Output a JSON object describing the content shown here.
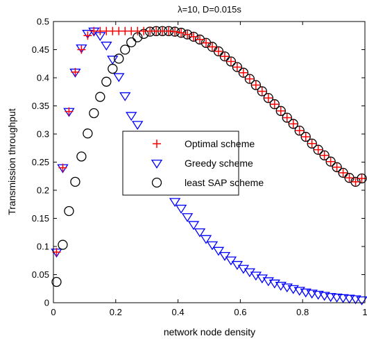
{
  "chart_data": {
    "type": "scatter",
    "title": "λ=10, D=0.015s",
    "xlabel": "network node density",
    "ylabel": "Transmission throughput",
    "xlim": [
      0,
      1
    ],
    "ylim": [
      0,
      0.5
    ],
    "x_ticks": [
      0,
      0.2,
      0.4,
      0.6,
      0.8,
      1
    ],
    "x_tick_labels": [
      "0",
      "0.2",
      "0.4",
      "0.6",
      "0.8",
      "1"
    ],
    "y_ticks": [
      0,
      0.05,
      0.1,
      0.15,
      0.2,
      0.25,
      0.3,
      0.35,
      0.4,
      0.45,
      0.5
    ],
    "y_tick_labels": [
      "0",
      "0.05",
      "0.1",
      "0.15",
      "0.2",
      "0.25",
      "0.3",
      "0.35",
      "0.4",
      "0.45",
      "0.5"
    ],
    "grid": false,
    "legend_position": "center",
    "series": [
      {
        "name": "Optimal scheme",
        "marker": "plus",
        "color": "#ff0000",
        "x": [
          0.01,
          0.03,
          0.05,
          0.07,
          0.09,
          0.11,
          0.13,
          0.15,
          0.17,
          0.19,
          0.21,
          0.23,
          0.25,
          0.27,
          0.29,
          0.31,
          0.33,
          0.35,
          0.37,
          0.39,
          0.41,
          0.43,
          0.45,
          0.47,
          0.49,
          0.51,
          0.53,
          0.55,
          0.57,
          0.59,
          0.61,
          0.63,
          0.65,
          0.67,
          0.69,
          0.71,
          0.73,
          0.75,
          0.77,
          0.79,
          0.81,
          0.83,
          0.85,
          0.87,
          0.89,
          0.91,
          0.93,
          0.95,
          0.97,
          0.99
        ],
        "y": [
          0.09,
          0.24,
          0.34,
          0.41,
          0.45,
          0.475,
          0.483,
          0.483,
          0.483,
          0.483,
          0.483,
          0.483,
          0.483,
          0.483,
          0.483,
          0.483,
          0.483,
          0.483,
          0.483,
          0.482,
          0.48,
          0.477,
          0.473,
          0.468,
          0.462,
          0.455,
          0.447,
          0.438,
          0.429,
          0.419,
          0.409,
          0.398,
          0.387,
          0.376,
          0.364,
          0.353,
          0.341,
          0.329,
          0.318,
          0.306,
          0.295,
          0.283,
          0.272,
          0.262,
          0.251,
          0.241,
          0.231,
          0.222,
          0.215,
          0.221
        ]
      },
      {
        "name": "Greedy scheme",
        "marker": "triangle-down",
        "color": "#0000ff",
        "x": [
          0.01,
          0.03,
          0.05,
          0.07,
          0.09,
          0.11,
          0.13,
          0.15,
          0.17,
          0.19,
          0.21,
          0.23,
          0.25,
          0.27,
          0.29,
          0.31,
          0.33,
          0.35,
          0.37,
          0.39,
          0.41,
          0.43,
          0.45,
          0.47,
          0.49,
          0.51,
          0.53,
          0.55,
          0.57,
          0.59,
          0.61,
          0.63,
          0.65,
          0.67,
          0.69,
          0.71,
          0.73,
          0.75,
          0.77,
          0.79,
          0.81,
          0.83,
          0.85,
          0.87,
          0.89,
          0.91,
          0.93,
          0.95,
          0.97,
          0.99
        ],
        "y": [
          0.09,
          0.24,
          0.34,
          0.41,
          0.453,
          0.479,
          0.483,
          0.475,
          0.458,
          0.433,
          0.402,
          0.368,
          0.333,
          0.317,
          0.285,
          0.263,
          0.242,
          0.222,
          0.203,
          0.18,
          0.168,
          0.153,
          0.139,
          0.126,
          0.114,
          0.103,
          0.093,
          0.084,
          0.076,
          0.068,
          0.061,
          0.055,
          0.049,
          0.044,
          0.039,
          0.035,
          0.031,
          0.028,
          0.025,
          0.022,
          0.019,
          0.017,
          0.015,
          0.013,
          0.011,
          0.01,
          0.009,
          0.008,
          0.007,
          0.005
        ]
      },
      {
        "name": "least SAP scheme",
        "marker": "circle",
        "color": "#000000",
        "x": [
          0.01,
          0.03,
          0.05,
          0.07,
          0.09,
          0.11,
          0.13,
          0.15,
          0.17,
          0.19,
          0.21,
          0.23,
          0.25,
          0.27,
          0.29,
          0.31,
          0.33,
          0.35,
          0.37,
          0.39,
          0.41,
          0.43,
          0.45,
          0.47,
          0.49,
          0.51,
          0.53,
          0.55,
          0.57,
          0.59,
          0.61,
          0.63,
          0.65,
          0.67,
          0.69,
          0.71,
          0.73,
          0.75,
          0.77,
          0.79,
          0.81,
          0.83,
          0.85,
          0.87,
          0.89,
          0.91,
          0.93,
          0.95,
          0.97,
          0.99
        ],
        "y": [
          0.037,
          0.103,
          0.163,
          0.215,
          0.26,
          0.301,
          0.337,
          0.366,
          0.393,
          0.416,
          0.434,
          0.45,
          0.463,
          0.472,
          0.478,
          0.482,
          0.483,
          0.483,
          0.483,
          0.482,
          0.48,
          0.477,
          0.473,
          0.468,
          0.462,
          0.455,
          0.447,
          0.438,
          0.429,
          0.419,
          0.409,
          0.398,
          0.387,
          0.376,
          0.364,
          0.353,
          0.341,
          0.329,
          0.318,
          0.306,
          0.295,
          0.283,
          0.272,
          0.262,
          0.251,
          0.241,
          0.231,
          0.222,
          0.215,
          0.221
        ]
      }
    ]
  }
}
